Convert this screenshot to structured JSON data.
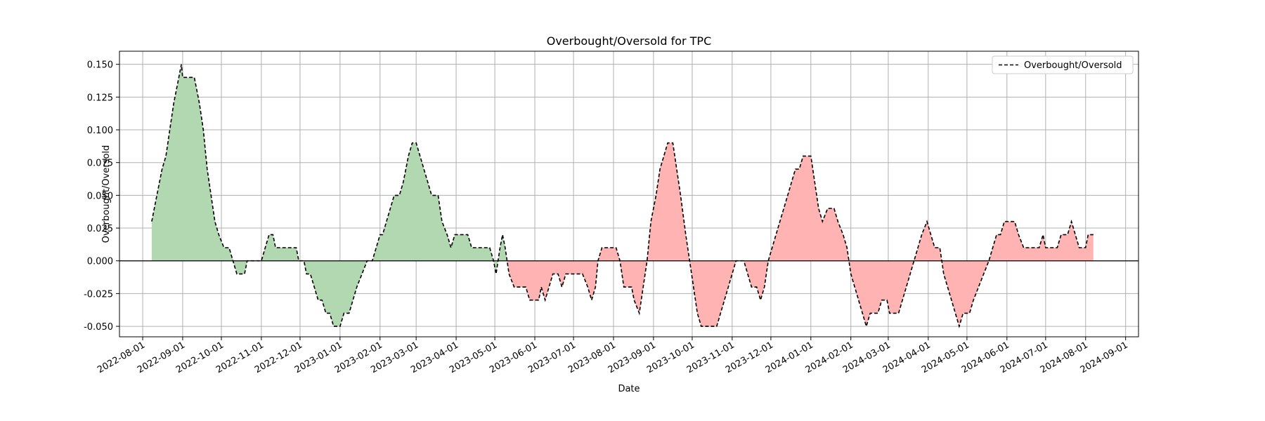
{
  "chart_data": {
    "type": "line",
    "title": "Overbought/Oversold for TPC",
    "xlabel": "Date",
    "ylabel": "Overbought/Oversold",
    "xlim": [
      "2022-07-14",
      "2024-09-11"
    ],
    "ylim": [
      -0.058,
      0.16
    ],
    "x_ticks": [
      "2022-08-01",
      "2022-09-01",
      "2022-10-01",
      "2022-11-01",
      "2022-12-01",
      "2023-01-01",
      "2023-02-01",
      "2023-03-01",
      "2023-04-01",
      "2023-05-01",
      "2023-06-01",
      "2023-07-01",
      "2023-08-01",
      "2023-09-01",
      "2023-10-01",
      "2023-11-01",
      "2023-12-01",
      "2024-01-01",
      "2024-02-01",
      "2024-03-01",
      "2024-04-01",
      "2024-05-01",
      "2024-06-01",
      "2024-07-01",
      "2024-08-01",
      "2024-09-01"
    ],
    "y_ticks": [
      "-0.050",
      "-0.025",
      "0.000",
      "0.025",
      "0.050",
      "0.075",
      "0.100",
      "0.125",
      "0.150"
    ],
    "grid": true,
    "legend_position": "top-right",
    "series": [
      {
        "name": "Overbought/Oversold",
        "style": "dashed",
        "color": "#000000",
        "points": [
          [
            "2022-08-08",
            0.03
          ],
          [
            "2022-08-12",
            0.05
          ],
          [
            "2022-08-16",
            0.07
          ],
          [
            "2022-08-19",
            0.08
          ],
          [
            "2022-08-22",
            0.1
          ],
          [
            "2022-08-25",
            0.12
          ],
          [
            "2022-08-28",
            0.135
          ],
          [
            "2022-08-31",
            0.15
          ],
          [
            "2022-09-01",
            0.14
          ],
          [
            "2022-09-10",
            0.14
          ],
          [
            "2022-09-14",
            0.12
          ],
          [
            "2022-09-17",
            0.1
          ],
          [
            "2022-09-20",
            0.07
          ],
          [
            "2022-09-23",
            0.05
          ],
          [
            "2022-09-26",
            0.03
          ],
          [
            "2022-09-29",
            0.02
          ],
          [
            "2022-10-03",
            0.01
          ],
          [
            "2022-10-07",
            0.01
          ],
          [
            "2022-10-10",
            0.0
          ],
          [
            "2022-10-13",
            -0.01
          ],
          [
            "2022-10-19",
            -0.01
          ],
          [
            "2022-10-21",
            0.0
          ],
          [
            "2022-11-01",
            0.0
          ],
          [
            "2022-11-04",
            0.01
          ],
          [
            "2022-11-07",
            0.02
          ],
          [
            "2022-11-10",
            0.02
          ],
          [
            "2022-11-12",
            0.01
          ],
          [
            "2022-11-28",
            0.01
          ],
          [
            "2022-11-30",
            0.0
          ],
          [
            "2022-12-04",
            0.0
          ],
          [
            "2022-12-06",
            -0.01
          ],
          [
            "2022-12-09",
            -0.01
          ],
          [
            "2022-12-12",
            -0.02
          ],
          [
            "2022-12-15",
            -0.03
          ],
          [
            "2022-12-18",
            -0.03
          ],
          [
            "2022-12-21",
            -0.04
          ],
          [
            "2022-12-24",
            -0.04
          ],
          [
            "2022-12-27",
            -0.05
          ],
          [
            "2023-01-01",
            -0.05
          ],
          [
            "2023-01-04",
            -0.04
          ],
          [
            "2023-01-08",
            -0.04
          ],
          [
            "2023-01-11",
            -0.03
          ],
          [
            "2023-01-14",
            -0.02
          ],
          [
            "2023-01-18",
            -0.01
          ],
          [
            "2023-01-22",
            0.0
          ],
          [
            "2023-01-26",
            0.0
          ],
          [
            "2023-01-29",
            0.01
          ],
          [
            "2023-02-01",
            0.02
          ],
          [
            "2023-02-03",
            0.02
          ],
          [
            "2023-02-06",
            0.03
          ],
          [
            "2023-02-09",
            0.04
          ],
          [
            "2023-02-12",
            0.05
          ],
          [
            "2023-02-16",
            0.05
          ],
          [
            "2023-02-19",
            0.06
          ],
          [
            "2023-02-21",
            0.07
          ],
          [
            "2023-02-23",
            0.08
          ],
          [
            "2023-02-26",
            0.09
          ],
          [
            "2023-03-01",
            0.09
          ],
          [
            "2023-03-04",
            0.08
          ],
          [
            "2023-03-07",
            0.07
          ],
          [
            "2023-03-10",
            0.06
          ],
          [
            "2023-03-13",
            0.05
          ],
          [
            "2023-03-18",
            0.05
          ],
          [
            "2023-03-21",
            0.03
          ],
          [
            "2023-03-25",
            0.02
          ],
          [
            "2023-03-28",
            0.01
          ],
          [
            "2023-03-31",
            0.02
          ],
          [
            "2023-04-10",
            0.02
          ],
          [
            "2023-04-13",
            0.01
          ],
          [
            "2023-04-27",
            0.01
          ],
          [
            "2023-04-30",
            0.0
          ],
          [
            "2023-05-02",
            -0.01
          ],
          [
            "2023-05-05",
            0.01
          ],
          [
            "2023-05-07",
            0.02
          ],
          [
            "2023-05-09",
            0.01
          ],
          [
            "2023-05-12",
            -0.01
          ],
          [
            "2023-05-16",
            -0.02
          ],
          [
            "2023-05-25",
            -0.02
          ],
          [
            "2023-05-28",
            -0.03
          ],
          [
            "2023-06-04",
            -0.03
          ],
          [
            "2023-06-06",
            -0.02
          ],
          [
            "2023-06-09",
            -0.03
          ],
          [
            "2023-06-12",
            -0.02
          ],
          [
            "2023-06-15",
            -0.01
          ],
          [
            "2023-06-19",
            -0.01
          ],
          [
            "2023-06-22",
            -0.02
          ],
          [
            "2023-06-25",
            -0.01
          ],
          [
            "2023-07-08",
            -0.01
          ],
          [
            "2023-07-12",
            -0.02
          ],
          [
            "2023-07-15",
            -0.03
          ],
          [
            "2023-07-18",
            -0.02
          ],
          [
            "2023-07-20",
            0.0
          ],
          [
            "2023-07-23",
            0.01
          ],
          [
            "2023-08-03",
            0.01
          ],
          [
            "2023-08-06",
            0.0
          ],
          [
            "2023-08-09",
            -0.02
          ],
          [
            "2023-08-15",
            -0.02
          ],
          [
            "2023-08-17",
            -0.03
          ],
          [
            "2023-08-21",
            -0.04
          ],
          [
            "2023-08-24",
            -0.02
          ],
          [
            "2023-08-27",
            0.0
          ],
          [
            "2023-08-30",
            0.03
          ],
          [
            "2023-09-03",
            0.05
          ],
          [
            "2023-09-06",
            0.07
          ],
          [
            "2023-09-09",
            0.08
          ],
          [
            "2023-09-12",
            0.09
          ],
          [
            "2023-09-16",
            0.09
          ],
          [
            "2023-09-19",
            0.07
          ],
          [
            "2023-09-22",
            0.05
          ],
          [
            "2023-09-26",
            0.02
          ],
          [
            "2023-09-29",
            0.0
          ],
          [
            "2023-10-02",
            -0.02
          ],
          [
            "2023-10-05",
            -0.04
          ],
          [
            "2023-10-08",
            -0.05
          ],
          [
            "2023-10-20",
            -0.05
          ],
          [
            "2023-10-23",
            -0.04
          ],
          [
            "2023-10-26",
            -0.03
          ],
          [
            "2023-10-29",
            -0.02
          ],
          [
            "2023-11-01",
            -0.01
          ],
          [
            "2023-11-04",
            0.0
          ],
          [
            "2023-11-10",
            0.0
          ],
          [
            "2023-11-13",
            -0.01
          ],
          [
            "2023-11-16",
            -0.02
          ],
          [
            "2023-11-20",
            -0.02
          ],
          [
            "2023-11-23",
            -0.03
          ],
          [
            "2023-11-26",
            -0.02
          ],
          [
            "2023-11-29",
            0.0
          ],
          [
            "2023-12-02",
            0.01
          ],
          [
            "2023-12-05",
            0.02
          ],
          [
            "2023-12-08",
            0.03
          ],
          [
            "2023-12-11",
            0.04
          ],
          [
            "2023-12-14",
            0.05
          ],
          [
            "2023-12-17",
            0.06
          ],
          [
            "2023-12-20",
            0.07
          ],
          [
            "2023-12-23",
            0.07
          ],
          [
            "2023-12-26",
            0.08
          ],
          [
            "2024-01-01",
            0.08
          ],
          [
            "2024-01-04",
            0.06
          ],
          [
            "2024-01-07",
            0.04
          ],
          [
            "2024-01-10",
            0.03
          ],
          [
            "2024-01-14",
            0.04
          ],
          [
            "2024-01-19",
            0.04
          ],
          [
            "2024-01-22",
            0.03
          ],
          [
            "2024-01-26",
            0.02
          ],
          [
            "2024-01-29",
            0.01
          ],
          [
            "2024-02-01",
            -0.01
          ],
          [
            "2024-02-04",
            -0.02
          ],
          [
            "2024-02-07",
            -0.03
          ],
          [
            "2024-02-10",
            -0.04
          ],
          [
            "2024-02-13",
            -0.05
          ],
          [
            "2024-02-16",
            -0.04
          ],
          [
            "2024-02-22",
            -0.04
          ],
          [
            "2024-02-25",
            -0.03
          ],
          [
            "2024-02-29",
            -0.03
          ],
          [
            "2024-03-02",
            -0.04
          ],
          [
            "2024-03-09",
            -0.04
          ],
          [
            "2024-03-12",
            -0.03
          ],
          [
            "2024-03-15",
            -0.02
          ],
          [
            "2024-03-18",
            -0.01
          ],
          [
            "2024-03-21",
            0.0
          ],
          [
            "2024-03-24",
            0.01
          ],
          [
            "2024-03-27",
            0.02
          ],
          [
            "2024-03-31",
            0.03
          ],
          [
            "2024-04-03",
            0.02
          ],
          [
            "2024-04-06",
            0.01
          ],
          [
            "2024-04-10",
            0.01
          ],
          [
            "2024-04-13",
            -0.01
          ],
          [
            "2024-04-16",
            -0.02
          ],
          [
            "2024-04-19",
            -0.03
          ],
          [
            "2024-04-22",
            -0.04
          ],
          [
            "2024-04-25",
            -0.05
          ],
          [
            "2024-04-28",
            -0.04
          ],
          [
            "2024-05-03",
            -0.04
          ],
          [
            "2024-05-06",
            -0.03
          ],
          [
            "2024-05-10",
            -0.02
          ],
          [
            "2024-05-14",
            -0.01
          ],
          [
            "2024-05-18",
            0.0
          ],
          [
            "2024-05-21",
            0.01
          ],
          [
            "2024-05-24",
            0.02
          ],
          [
            "2024-05-27",
            0.02
          ],
          [
            "2024-05-30",
            0.03
          ],
          [
            "2024-06-07",
            0.03
          ],
          [
            "2024-06-10",
            0.02
          ],
          [
            "2024-06-14",
            0.01
          ],
          [
            "2024-06-26",
            0.01
          ],
          [
            "2024-06-29",
            0.02
          ],
          [
            "2024-07-01",
            0.01
          ],
          [
            "2024-07-10",
            0.01
          ],
          [
            "2024-07-13",
            0.02
          ],
          [
            "2024-07-18",
            0.02
          ],
          [
            "2024-07-21",
            0.03
          ],
          [
            "2024-07-24",
            0.02
          ],
          [
            "2024-07-27",
            0.01
          ],
          [
            "2024-08-01",
            0.01
          ],
          [
            "2024-08-03",
            0.02
          ],
          [
            "2024-08-07",
            0.02
          ]
        ]
      }
    ],
    "fill_colors": {
      "positive": "#b2d8b2",
      "negative": "#ffb3b3"
    },
    "zero_line_color": "#000000",
    "grid_color": "#b0b0b0"
  }
}
